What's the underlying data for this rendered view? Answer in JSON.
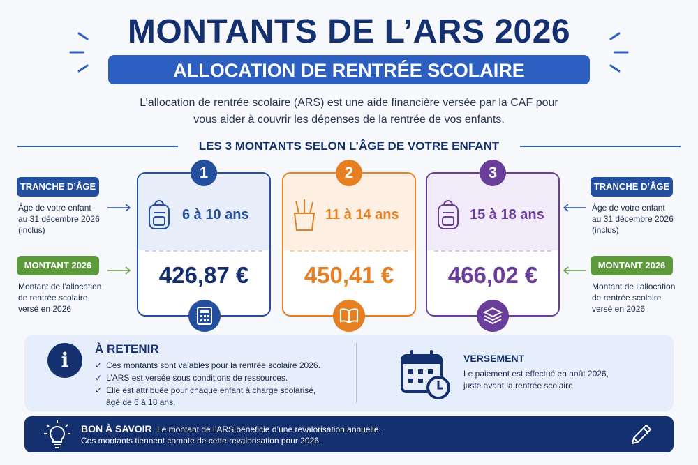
{
  "header": {
    "title": "MONTANTS DE L’ARS 2026",
    "subtitle": "ALLOCATION DE RENTRÉE SCOLAIRE",
    "intro_line1": "L’allocation de rentrée scolaire (ARS) est une aide financière versée par la CAF pour",
    "intro_line2": "vous aider à couvrir les dépenses de la rentrée de vos enfants."
  },
  "section_title": "LES 3 MONTANTS SELON L’ÂGE DE VOTRE ENFANT",
  "side_labels": {
    "age_pill": "TRANCHE D’ÂGE",
    "age_line1": "Âge de votre enfant",
    "age_line2": "au 31 décembre 2026",
    "age_line3": "(inclus)",
    "amount_pill": "MONTANT 2026",
    "amount_line1": "Montant de l’allocation",
    "amount_line2": "de rentrée scolaire",
    "amount_line3": "versé en 2026"
  },
  "cards": [
    {
      "number": "1",
      "age": "6 à 10 ans",
      "amount": "426,87 €",
      "color": "#244f9e",
      "top_bg": "#e7eefa",
      "icon": "backpack-icon",
      "bottom_icon": "calculator-icon"
    },
    {
      "number": "2",
      "age": "11 à 14 ans",
      "amount": "450,41 €",
      "color": "#e67e22",
      "top_bg": "#fdf0e3",
      "icon": "pencil-cup-icon",
      "bottom_icon": "book-icon"
    },
    {
      "number": "3",
      "age": "15 à 18 ans",
      "amount": "466,02 €",
      "color": "#6a3d9a",
      "top_bg": "#f1eaf8",
      "icon": "backpack-icon",
      "bottom_icon": "stack-icon"
    }
  ],
  "retenir": {
    "title": "À RETENIR",
    "items": [
      "Ces montants sont valables pour la rentrée scolaire 2026.",
      "L’ARS est versée sous conditions de ressources.",
      "Elle est attribuée pour chaque enfant à charge scolarisé,",
      "âgé de 6 à 18 ans."
    ]
  },
  "versement": {
    "title": "VERSEMENT",
    "text_line1": "Le paiement est effectué en août 2026,",
    "text_line2": "juste avant la rentrée scolaire."
  },
  "bon_a_savoir": {
    "title": "BON À SAVOIR",
    "text_line1": "Le montant de l’ARS bénéficie d’une revalorisation annuelle.",
    "text_line2": "Ces montants tiennent compte de cette revalorisation pour 2026."
  },
  "colors": {
    "navy": "#14306e",
    "blue": "#2c5fbf",
    "green": "#5c9a3c",
    "orange": "#e67e22",
    "purple": "#6a3d9a"
  }
}
